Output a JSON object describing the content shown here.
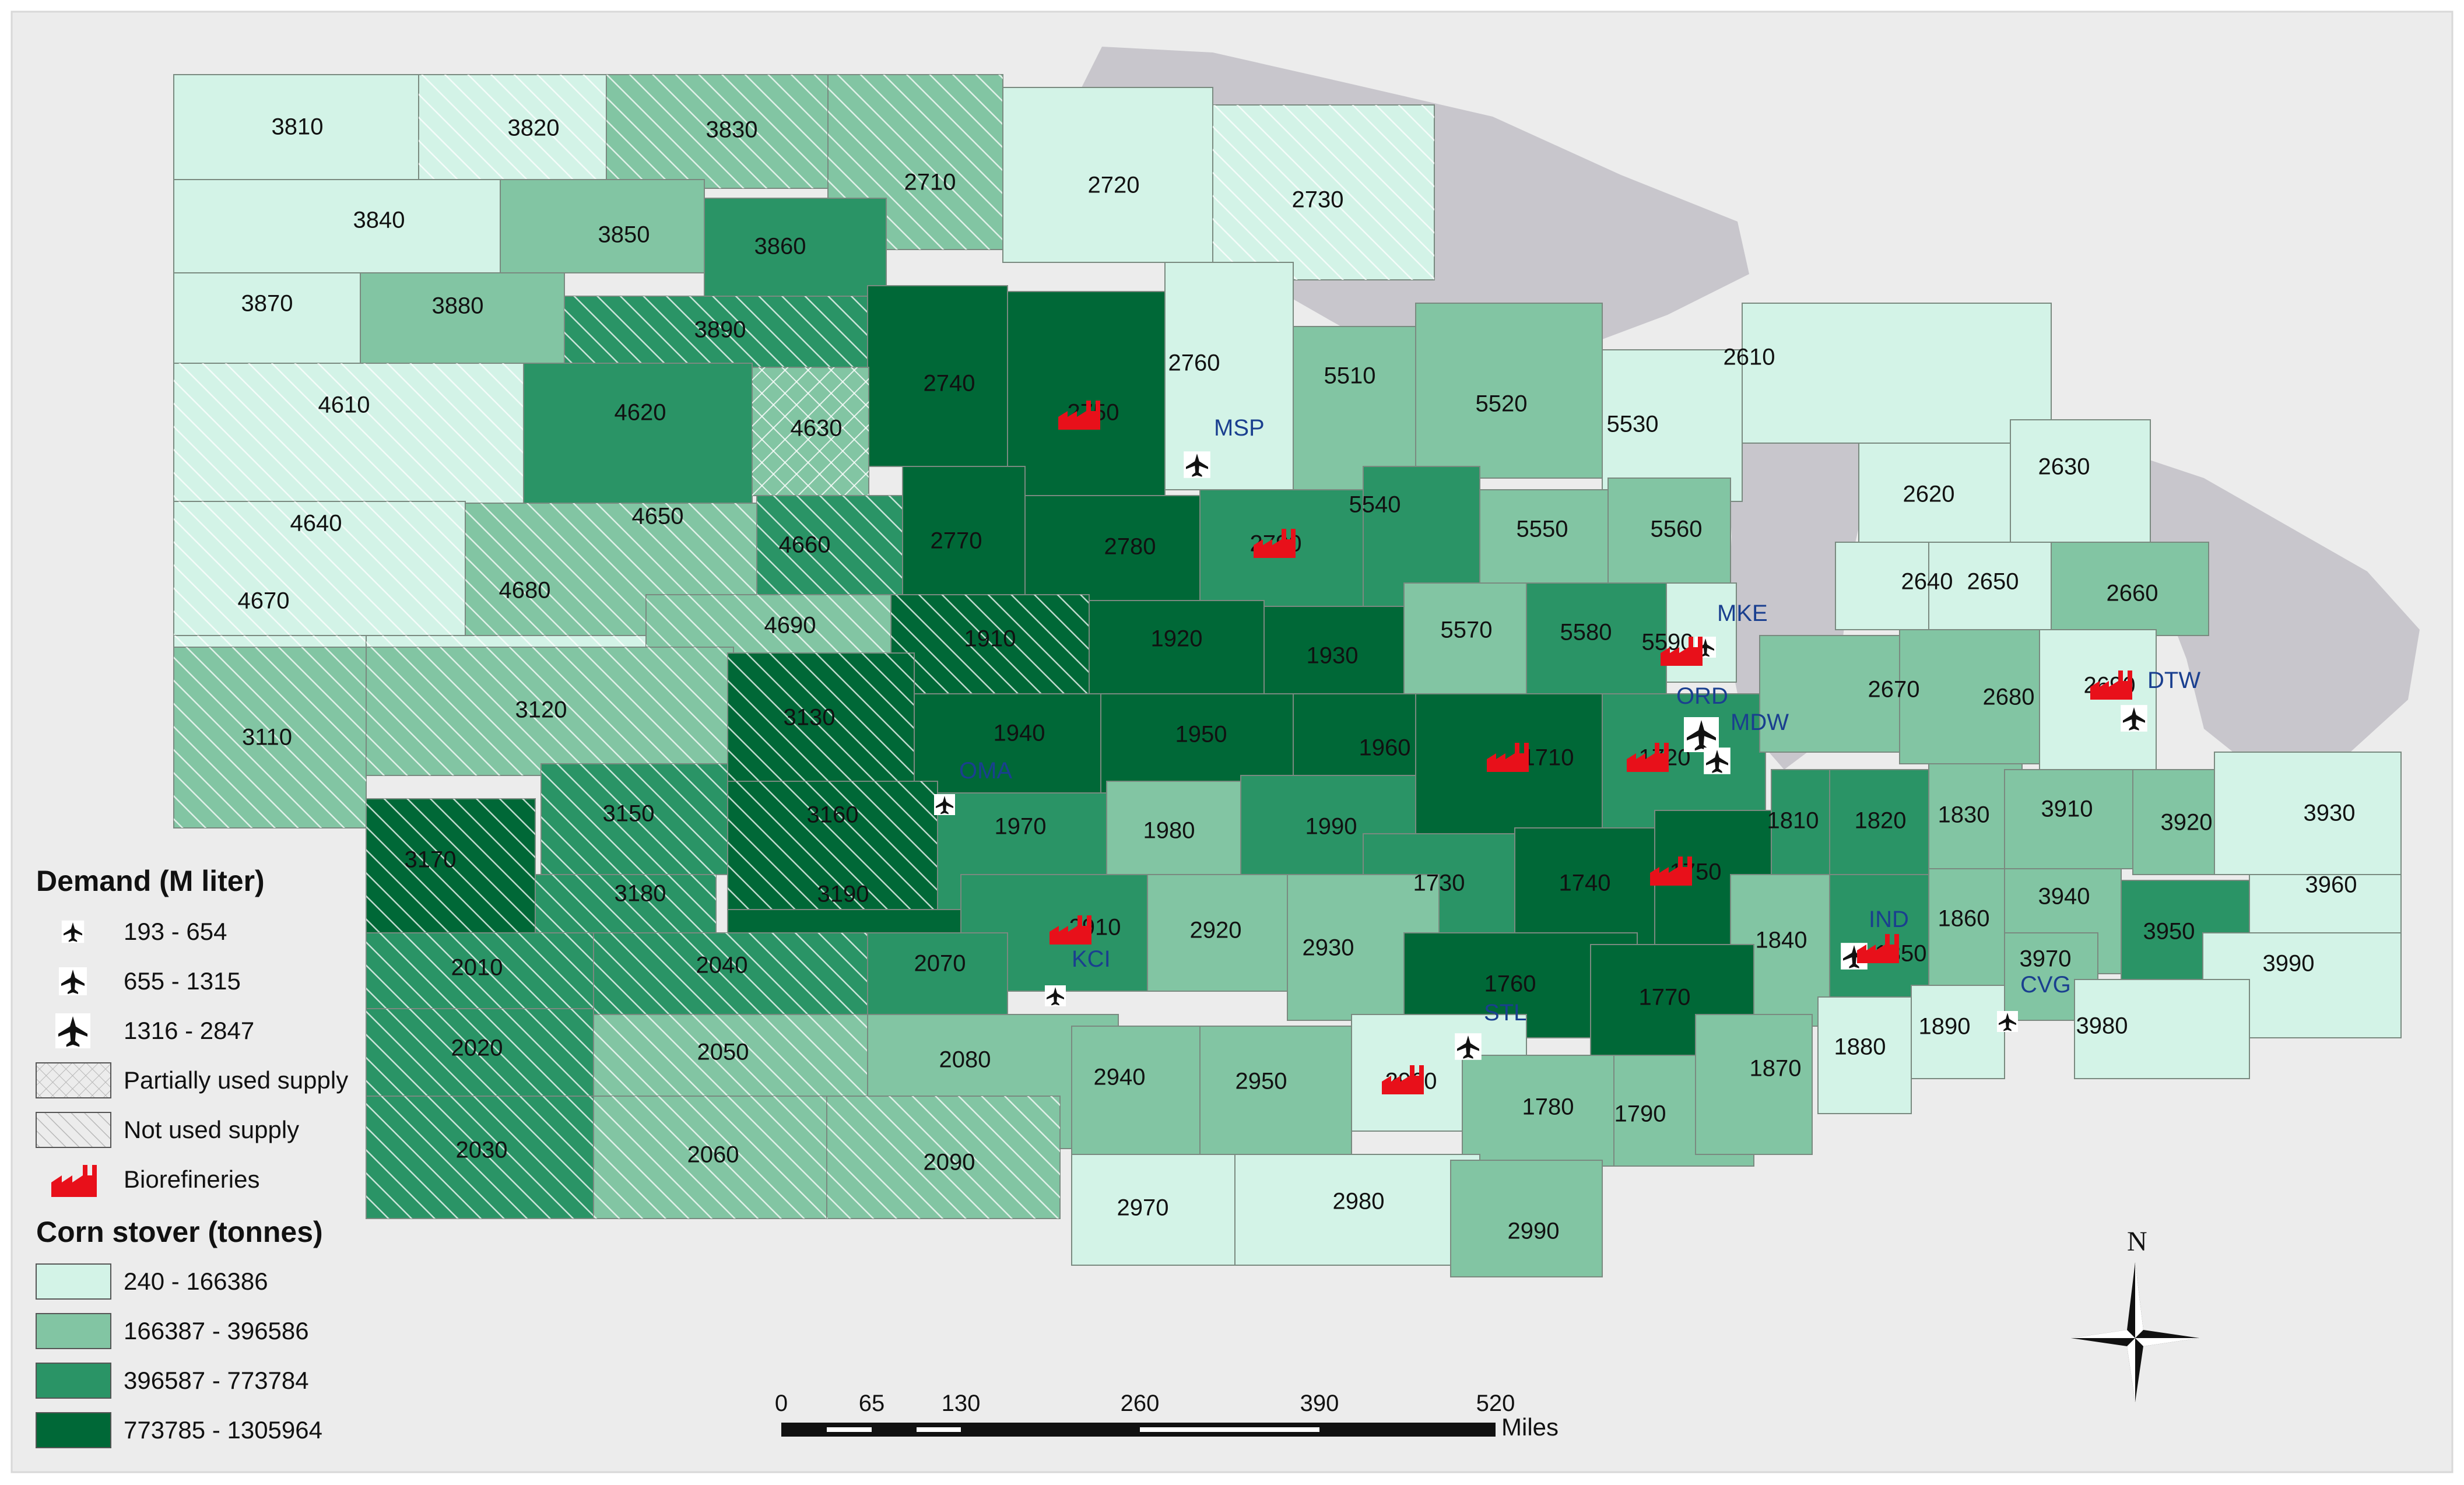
{
  "colors": {
    "class1": "#d3f3e7",
    "class2": "#82c5a3",
    "class3": "#2a9466",
    "class4": "#006837",
    "lake": "#c8c6cc",
    "land_bg": "#ececec",
    "biorefinery": "#e8101a",
    "airport_label": "#1a3f8f"
  },
  "regions": [
    {
      "id": "3810",
      "cls": 1,
      "hatch": "none"
    },
    {
      "id": "3820",
      "cls": 1,
      "hatch": "diag"
    },
    {
      "id": "3830",
      "cls": 2,
      "hatch": "diag"
    },
    {
      "id": "2710",
      "cls": 2,
      "hatch": "diag"
    },
    {
      "id": "2720",
      "cls": 1,
      "hatch": "none"
    },
    {
      "id": "2730",
      "cls": 1,
      "hatch": "diag"
    },
    {
      "id": "3840",
      "cls": 1,
      "hatch": "none"
    },
    {
      "id": "3850",
      "cls": 2,
      "hatch": "none"
    },
    {
      "id": "3860",
      "cls": 3,
      "hatch": "none"
    },
    {
      "id": "3870",
      "cls": 1,
      "hatch": "none"
    },
    {
      "id": "3880",
      "cls": 2,
      "hatch": "none"
    },
    {
      "id": "3890",
      "cls": 3,
      "hatch": "diag"
    },
    {
      "id": "2740",
      "cls": 4,
      "hatch": "none"
    },
    {
      "id": "2750",
      "cls": 4,
      "hatch": "none"
    },
    {
      "id": "2760",
      "cls": 1,
      "hatch": "none"
    },
    {
      "id": "5510",
      "cls": 2,
      "hatch": "none"
    },
    {
      "id": "5520",
      "cls": 2,
      "hatch": "none"
    },
    {
      "id": "5530",
      "cls": 1,
      "hatch": "none"
    },
    {
      "id": "2610",
      "cls": 1,
      "hatch": "none"
    },
    {
      "id": "4610",
      "cls": 1,
      "hatch": "diag"
    },
    {
      "id": "4620",
      "cls": 3,
      "hatch": "none"
    },
    {
      "id": "4630",
      "cls": 2,
      "hatch": "cross"
    },
    {
      "id": "4640",
      "cls": 1,
      "hatch": "diag"
    },
    {
      "id": "4650",
      "cls": 2,
      "hatch": "diag"
    },
    {
      "id": "4660",
      "cls": 3,
      "hatch": "diag"
    },
    {
      "id": "2770",
      "cls": 4,
      "hatch": "none"
    },
    {
      "id": "2780",
      "cls": 4,
      "hatch": "none"
    },
    {
      "id": "2790",
      "cls": 3,
      "hatch": "none"
    },
    {
      "id": "5540",
      "cls": 3,
      "hatch": "none"
    },
    {
      "id": "5550",
      "cls": 2,
      "hatch": "none"
    },
    {
      "id": "5560",
      "cls": 2,
      "hatch": "none"
    },
    {
      "id": "2620",
      "cls": 1,
      "hatch": "none"
    },
    {
      "id": "2630",
      "cls": 1,
      "hatch": "none"
    },
    {
      "id": "4670",
      "cls": 1,
      "hatch": "diag"
    },
    {
      "id": "4680",
      "cls": 1,
      "hatch": "diag"
    },
    {
      "id": "4690",
      "cls": 2,
      "hatch": "diag"
    },
    {
      "id": "1910",
      "cls": 4,
      "hatch": "diag"
    },
    {
      "id": "1920",
      "cls": 4,
      "hatch": "none"
    },
    {
      "id": "1930",
      "cls": 4,
      "hatch": "none"
    },
    {
      "id": "5570",
      "cls": 2,
      "hatch": "none"
    },
    {
      "id": "5580",
      "cls": 3,
      "hatch": "none"
    },
    {
      "id": "5590",
      "cls": 1,
      "hatch": "none"
    },
    {
      "id": "2640",
      "cls": 1,
      "hatch": "none"
    },
    {
      "id": "2650",
      "cls": 1,
      "hatch": "none"
    },
    {
      "id": "2660",
      "cls": 2,
      "hatch": "none"
    },
    {
      "id": "3110",
      "cls": 2,
      "hatch": "diag"
    },
    {
      "id": "3120",
      "cls": 2,
      "hatch": "diag"
    },
    {
      "id": "3130",
      "cls": 4,
      "hatch": "diag"
    },
    {
      "id": "1940",
      "cls": 4,
      "hatch": "none"
    },
    {
      "id": "1950",
      "cls": 4,
      "hatch": "none"
    },
    {
      "id": "1960",
      "cls": 4,
      "hatch": "none"
    },
    {
      "id": "1710",
      "cls": 4,
      "hatch": "none"
    },
    {
      "id": "1720",
      "cls": 3,
      "hatch": "none"
    },
    {
      "id": "2670",
      "cls": 2,
      "hatch": "none"
    },
    {
      "id": "2680",
      "cls": 2,
      "hatch": "none"
    },
    {
      "id": "2690",
      "cls": 1,
      "hatch": "none"
    },
    {
      "id": "3150",
      "cls": 3,
      "hatch": "diag"
    },
    {
      "id": "3160",
      "cls": 4,
      "hatch": "diag"
    },
    {
      "id": "1970",
      "cls": 3,
      "hatch": "none"
    },
    {
      "id": "1980",
      "cls": 2,
      "hatch": "none"
    },
    {
      "id": "1990",
      "cls": 3,
      "hatch": "none"
    },
    {
      "id": "1730",
      "cls": 3,
      "hatch": "none"
    },
    {
      "id": "1740",
      "cls": 4,
      "hatch": "none"
    },
    {
      "id": "1750",
      "cls": 4,
      "hatch": "none"
    },
    {
      "id": "1810",
      "cls": 3,
      "hatch": "none"
    },
    {
      "id": "1820",
      "cls": 3,
      "hatch": "none"
    },
    {
      "id": "1830",
      "cls": 2,
      "hatch": "none"
    },
    {
      "id": "3910",
      "cls": 2,
      "hatch": "none"
    },
    {
      "id": "3920",
      "cls": 2,
      "hatch": "none"
    },
    {
      "id": "3930",
      "cls": 1,
      "hatch": "none"
    },
    {
      "id": "3170",
      "cls": 4,
      "hatch": "diag"
    },
    {
      "id": "3180",
      "cls": 3,
      "hatch": "diag"
    },
    {
      "id": "3190",
      "cls": 4,
      "hatch": "none"
    },
    {
      "id": "2910",
      "cls": 3,
      "hatch": "none"
    },
    {
      "id": "2920",
      "cls": 2,
      "hatch": "none"
    },
    {
      "id": "2930",
      "cls": 2,
      "hatch": "none"
    },
    {
      "id": "1840",
      "cls": 2,
      "hatch": "none"
    },
    {
      "id": "1850",
      "cls": 3,
      "hatch": "none"
    },
    {
      "id": "1860",
      "cls": 2,
      "hatch": "none"
    },
    {
      "id": "3940",
      "cls": 2,
      "hatch": "none"
    },
    {
      "id": "3950",
      "cls": 3,
      "hatch": "none"
    },
    {
      "id": "3960",
      "cls": 1,
      "hatch": "none"
    },
    {
      "id": "2010",
      "cls": 3,
      "hatch": "diag"
    },
    {
      "id": "2040",
      "cls": 3,
      "hatch": "diag"
    },
    {
      "id": "2070",
      "cls": 3,
      "hatch": "none"
    },
    {
      "id": "1760",
      "cls": 4,
      "hatch": "none"
    },
    {
      "id": "1770",
      "cls": 4,
      "hatch": "none"
    },
    {
      "id": "3970",
      "cls": 2,
      "hatch": "none"
    },
    {
      "id": "3990",
      "cls": 1,
      "hatch": "none"
    },
    {
      "id": "2020",
      "cls": 3,
      "hatch": "diag"
    },
    {
      "id": "2050",
      "cls": 2,
      "hatch": "diag"
    },
    {
      "id": "2080",
      "cls": 2,
      "hatch": "none"
    },
    {
      "id": "2940",
      "cls": 2,
      "hatch": "none"
    },
    {
      "id": "2950",
      "cls": 2,
      "hatch": "none"
    },
    {
      "id": "2960",
      "cls": 1,
      "hatch": "none"
    },
    {
      "id": "1780",
      "cls": 2,
      "hatch": "none"
    },
    {
      "id": "1790",
      "cls": 2,
      "hatch": "none"
    },
    {
      "id": "1870",
      "cls": 2,
      "hatch": "none"
    },
    {
      "id": "1880",
      "cls": 1,
      "hatch": "none"
    },
    {
      "id": "1890",
      "cls": 1,
      "hatch": "none"
    },
    {
      "id": "3980",
      "cls": 1,
      "hatch": "none"
    },
    {
      "id": "2030",
      "cls": 3,
      "hatch": "diag"
    },
    {
      "id": "2060",
      "cls": 2,
      "hatch": "diag"
    },
    {
      "id": "2090",
      "cls": 2,
      "hatch": "diag"
    },
    {
      "id": "2970",
      "cls": 1,
      "hatch": "none"
    },
    {
      "id": "2980",
      "cls": 1,
      "hatch": "none"
    },
    {
      "id": "2990",
      "cls": 2,
      "hatch": "none"
    }
  ],
  "airports": [
    {
      "code": "MSP",
      "size": 2
    },
    {
      "code": "MKE",
      "size": 1
    },
    {
      "code": "ORD",
      "size": 3
    },
    {
      "code": "MDW",
      "size": 2
    },
    {
      "code": "DTW",
      "size": 2
    },
    {
      "code": "OMA",
      "size": 1
    },
    {
      "code": "KCI",
      "size": 1
    },
    {
      "code": "STL",
      "size": 2
    },
    {
      "code": "IND",
      "size": 2
    },
    {
      "code": "CVG",
      "size": 1
    }
  ],
  "legend": {
    "demand_title": "Demand (M liter)",
    "demand_items": [
      "193 - 654",
      "655 - 1315",
      "1316 - 2847"
    ],
    "partially_used": "Partially used supply",
    "not_used": "Not used supply",
    "biorefineries": "Biorefineries",
    "stover_title": "Corn stover (tonnes)",
    "stover_items": [
      "240 - 166386",
      "166387 - 396586",
      "396587 - 773784",
      "773785 - 1305964"
    ]
  },
  "scale_bar": {
    "ticks": [
      "0",
      "65",
      "130",
      "260",
      "390",
      "520"
    ],
    "unit": "Miles"
  },
  "north_label": "N"
}
